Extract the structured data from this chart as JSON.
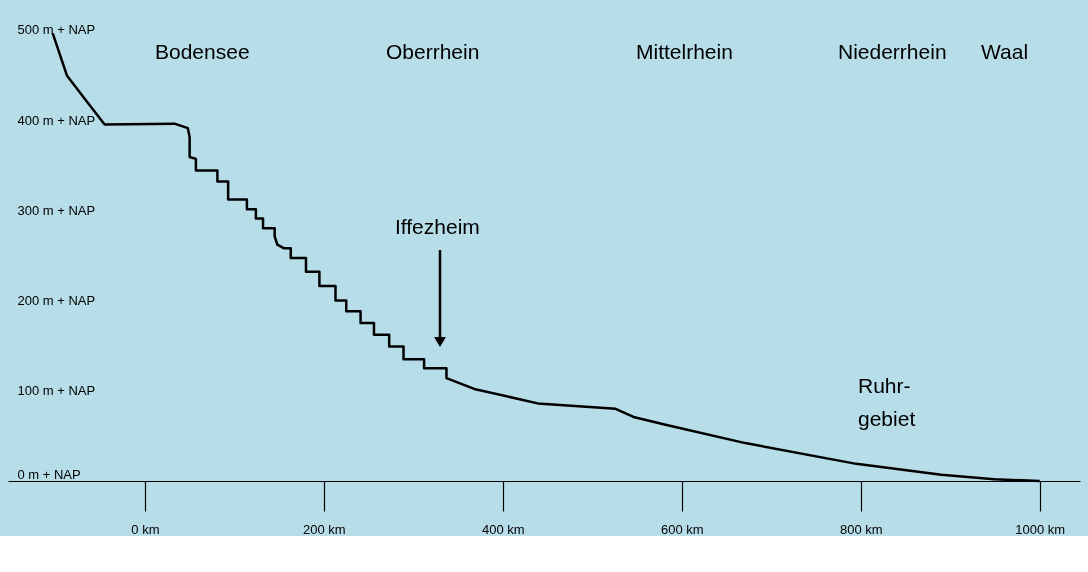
{
  "chart_data": {
    "type": "line",
    "x": [
      -103,
      -87,
      -66,
      -45,
      33,
      48,
      50,
      50,
      57,
      57,
      81,
      81,
      93,
      93,
      114,
      114,
      124,
      124,
      132,
      132,
      145,
      145,
      148,
      155,
      163,
      163,
      180,
      180,
      195,
      195,
      213,
      213,
      225,
      225,
      241,
      241,
      256,
      256,
      273,
      273,
      289,
      289,
      312,
      312,
      337,
      337,
      368,
      439,
      526,
      546,
      583,
      671,
      795,
      890,
      949,
      1000
    ],
    "series": [
      {
        "color": "#000000",
        "values": [
          496,
          449,
          422,
          395,
          396,
          391,
          381,
          359,
          357,
          344,
          344,
          332,
          332,
          312,
          312,
          301,
          301,
          291,
          291,
          280,
          280,
          271,
          262,
          258,
          258,
          247,
          247,
          232,
          232,
          216,
          216,
          200,
          200,
          188,
          188,
          175,
          175,
          162,
          162,
          149,
          149,
          135,
          135,
          125,
          125,
          114,
          102,
          86,
          80,
          71,
          62,
          42,
          19,
          7,
          2,
          0
        ]
      }
    ],
    "xlim": [
      -153,
      1045
    ],
    "ylim": [
      0,
      533
    ],
    "xticks": [
      {
        "value": 0,
        "label": "0 km"
      },
      {
        "value": 200,
        "label": "200 km"
      },
      {
        "value": 400,
        "label": "400 km"
      },
      {
        "value": 600,
        "label": "600 km"
      },
      {
        "value": 800,
        "label": "800 km"
      },
      {
        "value": 1000,
        "label": "1000 km"
      }
    ],
    "yticks": [
      {
        "value": 0,
        "label": "0 m + NAP"
      },
      {
        "value": 100,
        "label": "100 m + NAP"
      },
      {
        "value": 200,
        "label": "200 m + NAP"
      },
      {
        "value": 300,
        "label": "300 m + NAP"
      },
      {
        "value": 400,
        "label": "400 m + NAP"
      },
      {
        "value": 500,
        "label": "500 m + NAP"
      }
    ],
    "annotations": [
      "Bodensee",
      "Oberrhein",
      "Mittelrhein",
      "Niederrhein",
      "Waal",
      "Ruhr-\ngebiet",
      "Iffezheim"
    ],
    "marker": "none",
    "line_style": "solid"
  }
}
